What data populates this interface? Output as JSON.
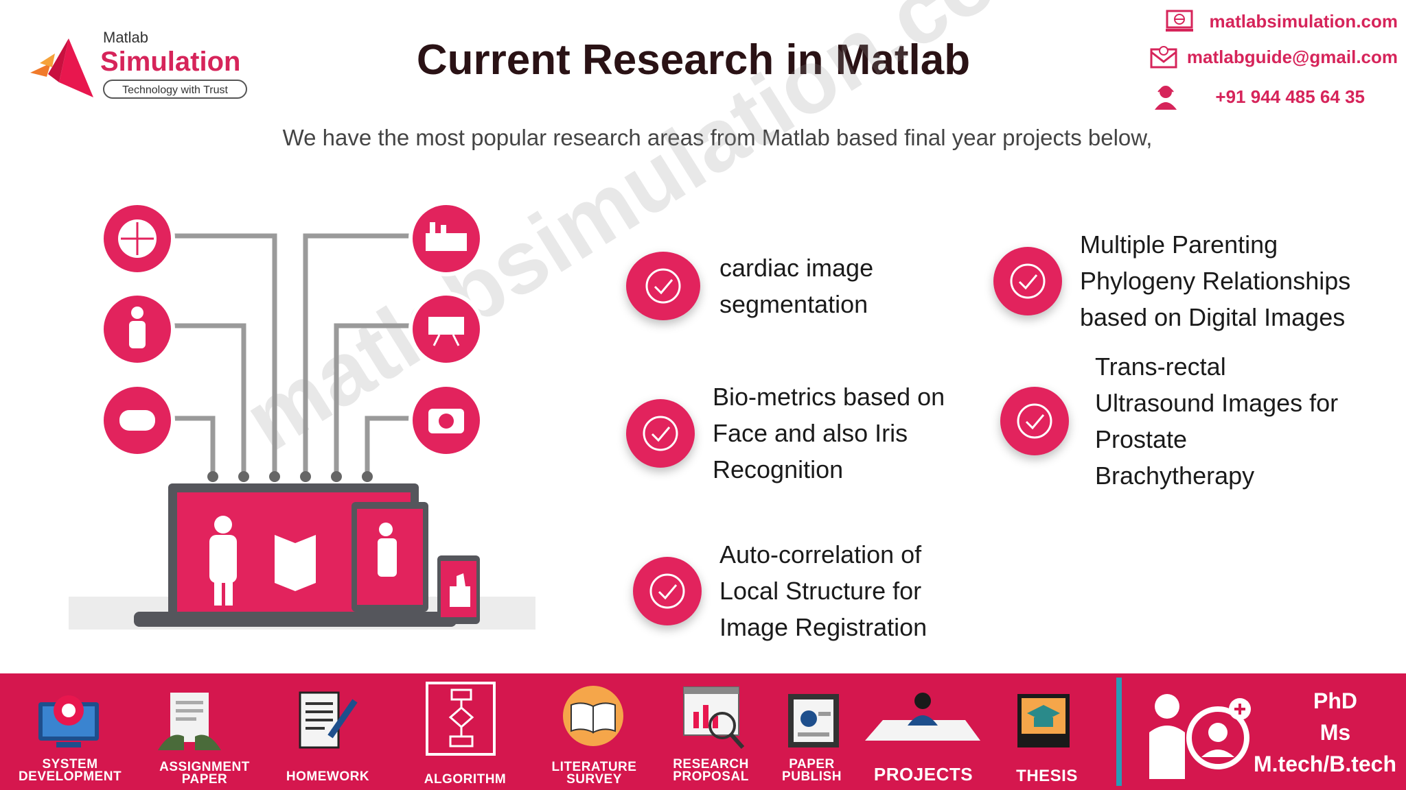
{
  "logo": {
    "small": "Matlab",
    "big": "Simulation",
    "tagline": "Technology with Trust"
  },
  "header": {
    "title": "Current Research in Matlab"
  },
  "subtitle": "We have the most popular research areas from Matlab based final year projects below,",
  "contact": {
    "website": "matlabsimulation.com",
    "email": "matlabguide@gmail.com",
    "phone": "+91 944 485 64 35"
  },
  "watermark": "matlabsimulation.com",
  "research_items": [
    "cardiac image\nsegmentation",
    "Bio-metrics based on\nFace and also Iris\nRecognition",
    "Auto-correlation of\nLocal Structure  for\nImage Registration",
    "Multiple Parenting\nPhylogeny Relationships\nbased on  Digital Images",
    "Trans-rectal\nUltrasound Images for\nProstate\nBrachytherapy"
  ],
  "footer": {
    "items": [
      {
        "label": "SYSTEM\nDEVELOPMENT",
        "icon": "monitor-gear-icon"
      },
      {
        "label": "ASSIGNMENT\nPAPER",
        "icon": "assignment-paper-icon"
      },
      {
        "label": "HOMEWORK",
        "icon": "homework-icon"
      },
      {
        "label": "ALGORITHM",
        "icon": "flowchart-icon"
      },
      {
        "label": "LITERATURE\nSURVEY",
        "icon": "open-book-icon"
      },
      {
        "label": "RESEARCH\nPROPOSAL",
        "icon": "research-chart-icon"
      },
      {
        "label": "PAPER\nPUBLISH",
        "icon": "paper-publish-icon"
      },
      {
        "label": "PROJECTS",
        "icon": "projects-desk-icon"
      },
      {
        "label": "THESIS",
        "icon": "graduation-cap-icon"
      }
    ],
    "degrees": [
      "PhD",
      "Ms",
      "M.tech/B.tech"
    ]
  },
  "colors": {
    "accent": "#e2235d",
    "footer": "#d5174e",
    "title": "#2a1215"
  }
}
